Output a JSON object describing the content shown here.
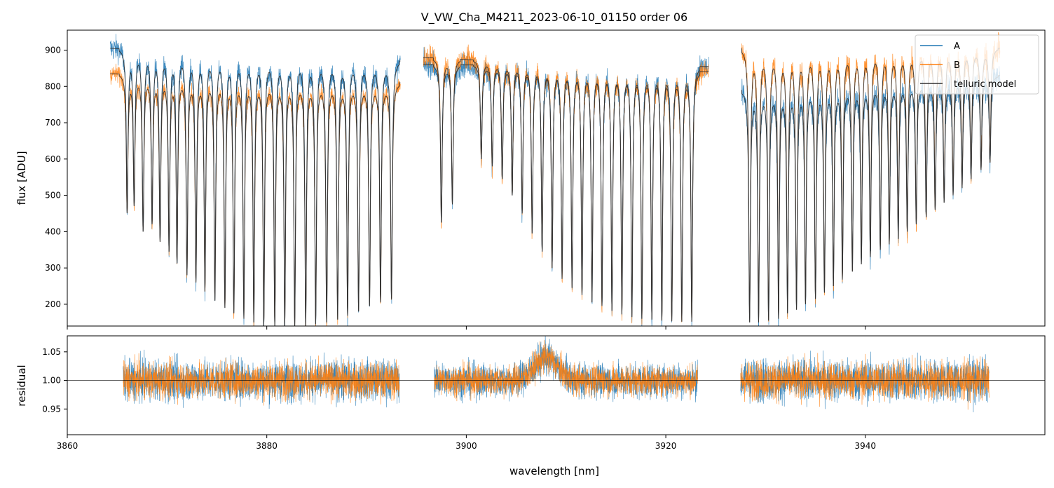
{
  "chart_data": [
    {
      "type": "line",
      "panel": "top",
      "title": "V_VW_Cha_M4211_2023-06-10_01150  order 06",
      "xlabel": "",
      "ylabel": "flux [ADU]",
      "xlim": [
        3860.0,
        3958.0
      ],
      "ylim": [
        140,
        955
      ],
      "x_ticks": [
        3860,
        3880,
        3900,
        3920,
        3940
      ],
      "y_ticks": [
        200,
        300,
        400,
        500,
        600,
        700,
        800,
        900
      ],
      "y_tick_labels": [
        "200",
        "300",
        "400",
        "500",
        "600",
        "700",
        "800",
        "900"
      ],
      "grid": false,
      "legend": "top-right",
      "series": [
        {
          "name": "A",
          "color": "#1f77b4",
          "segments": [
            {
              "x0": 3864.3,
              "x1": 3893.4,
              "cont0": 905,
              "cont1": 870,
              "noise": 32
            },
            {
              "x0": 3895.7,
              "x1": 3924.3,
              "cont0": 860,
              "cont1": 855,
              "noise": 30
            },
            {
              "x0": 3927.6,
              "x1": 3953.5,
              "cont0": 790,
              "cont1": 830,
              "noise": 34
            }
          ]
        },
        {
          "name": "B",
          "color": "#ff7f0e",
          "segments": [
            {
              "x0": 3864.3,
              "x1": 3893.4,
              "cont0": 835,
              "cont1": 810,
              "noise": 24
            },
            {
              "x0": 3895.7,
              "x1": 3924.3,
              "cont0": 880,
              "cont1": 840,
              "noise": 28
            },
            {
              "x0": 3927.6,
              "x1": 3953.5,
              "cont0": 905,
              "cont1": 905,
              "noise": 36
            }
          ]
        },
        {
          "name": "telluric model",
          "color": "#333333"
        }
      ],
      "absorption_lines": [
        {
          "x": 3866.0,
          "depth": 455
        },
        {
          "x": 3866.7,
          "depth": 475
        },
        {
          "x": 3867.6,
          "depth": 400
        },
        {
          "x": 3868.5,
          "depth": 420
        },
        {
          "x": 3869.3,
          "depth": 375
        },
        {
          "x": 3870.2,
          "depth": 345
        },
        {
          "x": 3871.0,
          "depth": 315
        },
        {
          "x": 3872.0,
          "depth": 280
        },
        {
          "x": 3872.9,
          "depth": 260
        },
        {
          "x": 3873.8,
          "depth": 235
        },
        {
          "x": 3874.8,
          "depth": 210
        },
        {
          "x": 3875.8,
          "depth": 190
        },
        {
          "x": 3876.7,
          "depth": 175
        },
        {
          "x": 3877.7,
          "depth": 160
        },
        {
          "x": 3878.7,
          "depth": 150
        },
        {
          "x": 3879.7,
          "depth": 140
        },
        {
          "x": 3880.8,
          "depth": 140
        },
        {
          "x": 3881.8,
          "depth": 140
        },
        {
          "x": 3882.8,
          "depth": 140
        },
        {
          "x": 3883.9,
          "depth": 140
        },
        {
          "x": 3884.9,
          "depth": 145
        },
        {
          "x": 3886.0,
          "depth": 150
        },
        {
          "x": 3887.1,
          "depth": 158
        },
        {
          "x": 3888.1,
          "depth": 168
        },
        {
          "x": 3889.2,
          "depth": 180
        },
        {
          "x": 3890.3,
          "depth": 195
        },
        {
          "x": 3891.4,
          "depth": 205
        },
        {
          "x": 3892.5,
          "depth": 215
        },
        {
          "x": 3897.5,
          "depth": 425
        },
        {
          "x": 3898.6,
          "depth": 475
        },
        {
          "x": 3901.5,
          "depth": 600
        },
        {
          "x": 3902.6,
          "depth": 580
        },
        {
          "x": 3903.6,
          "depth": 545
        },
        {
          "x": 3904.6,
          "depth": 500
        },
        {
          "x": 3905.6,
          "depth": 450
        },
        {
          "x": 3906.6,
          "depth": 395
        },
        {
          "x": 3907.6,
          "depth": 345
        },
        {
          "x": 3908.6,
          "depth": 300
        },
        {
          "x": 3909.6,
          "depth": 270
        },
        {
          "x": 3910.6,
          "depth": 245
        },
        {
          "x": 3911.6,
          "depth": 225
        },
        {
          "x": 3912.6,
          "depth": 205
        },
        {
          "x": 3913.6,
          "depth": 195
        },
        {
          "x": 3914.6,
          "depth": 182
        },
        {
          "x": 3915.6,
          "depth": 172
        },
        {
          "x": 3916.6,
          "depth": 165
        },
        {
          "x": 3917.6,
          "depth": 160
        },
        {
          "x": 3918.6,
          "depth": 158
        },
        {
          "x": 3919.6,
          "depth": 155
        },
        {
          "x": 3920.6,
          "depth": 153
        },
        {
          "x": 3921.6,
          "depth": 152
        },
        {
          "x": 3922.6,
          "depth": 152
        },
        {
          "x": 3928.4,
          "depth": 150
        },
        {
          "x": 3929.3,
          "depth": 150
        },
        {
          "x": 3930.3,
          "depth": 155
        },
        {
          "x": 3931.3,
          "depth": 160
        },
        {
          "x": 3932.2,
          "depth": 175
        },
        {
          "x": 3933.1,
          "depth": 185
        },
        {
          "x": 3934.0,
          "depth": 200
        },
        {
          "x": 3935.0,
          "depth": 215
        },
        {
          "x": 3935.9,
          "depth": 232
        },
        {
          "x": 3936.8,
          "depth": 250
        },
        {
          "x": 3937.7,
          "depth": 268
        },
        {
          "x": 3938.7,
          "depth": 290
        },
        {
          "x": 3939.6,
          "depth": 310
        },
        {
          "x": 3940.5,
          "depth": 330
        },
        {
          "x": 3941.5,
          "depth": 350
        },
        {
          "x": 3942.4,
          "depth": 365
        },
        {
          "x": 3943.3,
          "depth": 380
        },
        {
          "x": 3944.2,
          "depth": 400
        },
        {
          "x": 3945.1,
          "depth": 420
        },
        {
          "x": 3946.1,
          "depth": 440
        },
        {
          "x": 3947.0,
          "depth": 460
        },
        {
          "x": 3947.9,
          "depth": 480
        },
        {
          "x": 3948.8,
          "depth": 500
        },
        {
          "x": 3949.7,
          "depth": 520
        },
        {
          "x": 3950.6,
          "depth": 545
        },
        {
          "x": 3951.6,
          "depth": 570
        },
        {
          "x": 3952.5,
          "depth": 590
        }
      ]
    },
    {
      "type": "line",
      "panel": "bottom",
      "title": "",
      "xlabel": "wavelength [nm]",
      "ylabel": "residual",
      "xlim": [
        3860.0,
        3958.0
      ],
      "ylim": [
        0.905,
        1.078
      ],
      "x_ticks": [
        3860,
        3880,
        3900,
        3920,
        3940
      ],
      "x_tick_labels": [
        "3860",
        "3880",
        "3900",
        "3920",
        "3940"
      ],
      "y_ticks": [
        0.95,
        1.0,
        1.05
      ],
      "y_tick_labels": [
        "0.95",
        "1.00",
        "1.05"
      ],
      "reference_line": 1.0,
      "grid": false,
      "series": [
        {
          "name": "A",
          "color": "#1f77b4",
          "segments": [
            {
              "x0": 3865.6,
              "x1": 3893.3,
              "noise": 0.036
            },
            {
              "x0": 3896.8,
              "x1": 3923.2,
              "noise": 0.03
            },
            {
              "x0": 3927.5,
              "x1": 3952.4,
              "noise": 0.037
            }
          ]
        },
        {
          "name": "B",
          "color": "#ff7f0e",
          "segments": [
            {
              "x0": 3865.6,
              "x1": 3893.3,
              "noise": 0.032
            },
            {
              "x0": 3896.8,
              "x1": 3923.2,
              "noise": 0.027
            },
            {
              "x0": 3927.5,
              "x1": 3952.4,
              "noise": 0.034
            }
          ]
        }
      ],
      "bump": {
        "center": 3908.0,
        "width": 1.6,
        "height": 0.04
      }
    }
  ]
}
